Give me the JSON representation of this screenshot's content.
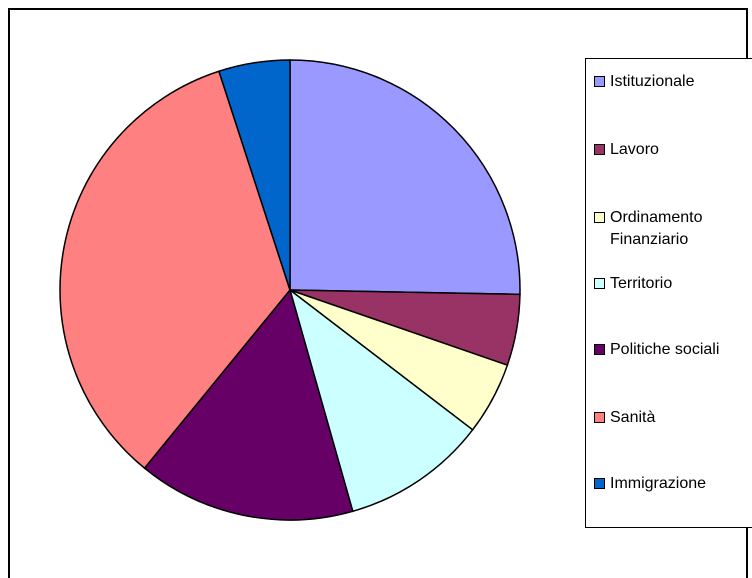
{
  "chart_data": {
    "type": "pie",
    "title": "",
    "legend_position": "right",
    "categories": [
      "Istituzionale",
      "Lavoro",
      "Ordinamento Finanziario",
      "Territorio",
      "Politiche sociali",
      "Sanità",
      "Immigrazione"
    ],
    "values": [
      25.3,
      5.0,
      5.1,
      10.2,
      15.3,
      34.1,
      5.0
    ],
    "colors": [
      "#9999FF",
      "#993366",
      "#FFFFCC",
      "#CCFFFF",
      "#660066",
      "#FF8080",
      "#0066CC"
    ],
    "legend_labels": [
      [
        "Istituzionale"
      ],
      [
        "Lavoro"
      ],
      [
        "Ordinamento",
        "Finanziario"
      ],
      [
        "Territorio"
      ],
      [
        "Politiche sociali"
      ],
      [
        "Sanità"
      ],
      [
        "Immigrazione"
      ]
    ]
  }
}
